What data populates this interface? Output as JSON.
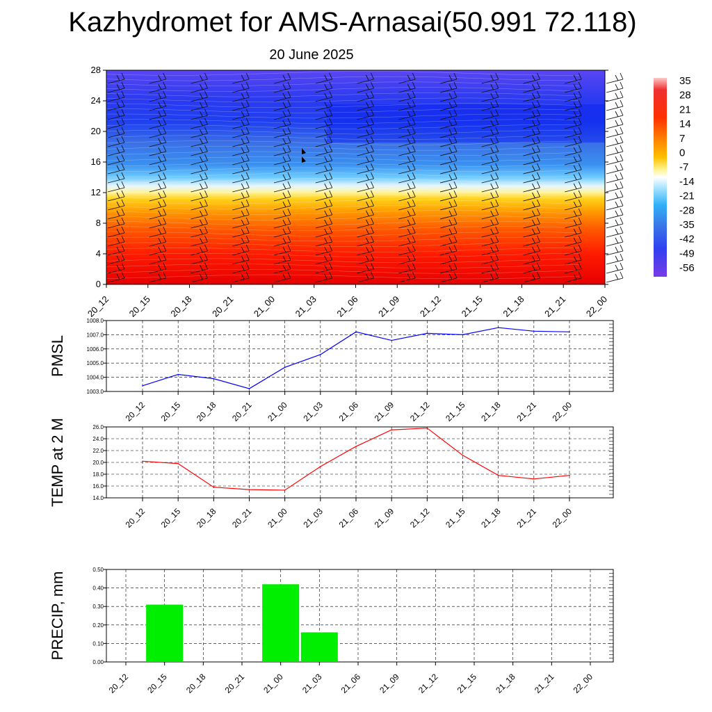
{
  "header": {
    "title": "Kazhydromet for AMS-Arnasai(50.991 72.118)",
    "subtitle": "20 June 2025"
  },
  "time_labels": [
    "20_12",
    "20_15",
    "20_18",
    "20_21",
    "21_00",
    "21_03",
    "21_06",
    "21_09",
    "21_12",
    "21_15",
    "21_18",
    "21_21",
    "22_00"
  ],
  "colors": {
    "pmsl_line": "#0000ff",
    "temp_line": "#ff0000",
    "precip_bar": "#00ee00",
    "grid": "#000000"
  },
  "chart_data": [
    {
      "type": "heatmap",
      "title": "Kazhydromet for AMS-Arnasai(50.991 72.118)",
      "subtitle": "20 June 2025",
      "x": [
        "20_12",
        "20_15",
        "20_18",
        "20_21",
        "21_00",
        "21_03",
        "21_06",
        "21_09",
        "21_12",
        "21_15",
        "21_18",
        "21_21",
        "22_00"
      ],
      "y_ticks": [
        0,
        4,
        8,
        12,
        16,
        20,
        24,
        28
      ],
      "ylim": [
        0,
        28
      ],
      "colorbar_ticks": [
        35,
        28,
        21,
        14,
        7,
        0,
        -7,
        -14,
        -21,
        -28,
        -35,
        -42,
        -49,
        -56
      ],
      "wind_barbs": true
    },
    {
      "type": "line",
      "ylabel": "PMSL",
      "x": [
        "20_12",
        "20_15",
        "20_18",
        "20_21",
        "21_00",
        "21_03",
        "21_06",
        "21_09",
        "21_12",
        "21_15",
        "21_18",
        "21_21",
        "22_00"
      ],
      "values": [
        1003.4,
        1004.2,
        1003.9,
        1003.2,
        1004.7,
        1005.6,
        1007.2,
        1006.6,
        1007.1,
        1007.0,
        1007.5,
        1007.25,
        1007.2
      ],
      "ylim": [
        1003.0,
        1008.0
      ],
      "y_ticks": [
        "1003.0",
        "1004.0",
        "1005.0",
        "1006.0",
        "1007.0",
        "1008.0"
      ],
      "grid": true
    },
    {
      "type": "line",
      "ylabel": "TEMP at 2 M",
      "x": [
        "20_12",
        "20_15",
        "20_18",
        "20_21",
        "21_00",
        "21_03",
        "21_06",
        "21_09",
        "21_12",
        "21_15",
        "21_18",
        "21_21",
        "22_00"
      ],
      "values": [
        20.2,
        19.8,
        15.8,
        15.4,
        15.3,
        19.3,
        22.7,
        25.5,
        25.8,
        21.2,
        17.8,
        17.2,
        17.8
      ],
      "ylim": [
        14.0,
        26.0
      ],
      "y_ticks": [
        "14.0",
        "16.0",
        "18.0",
        "20.0",
        "22.0",
        "24.0",
        "26.0"
      ],
      "grid": true
    },
    {
      "type": "bar",
      "ylabel": "PRECIP, mm",
      "categories": [
        "20_12",
        "20_15",
        "20_18",
        "20_21",
        "21_00",
        "21_03",
        "21_06",
        "21_09",
        "21_12",
        "21_15",
        "21_18",
        "21_21",
        "22_00"
      ],
      "values": [
        0,
        0.31,
        0,
        0,
        0.42,
        0.16,
        0,
        0,
        0,
        0,
        0,
        0,
        0
      ],
      "ylim": [
        0.0,
        0.5
      ],
      "y_ticks": [
        "0.00",
        "0.10",
        "0.20",
        "0.30",
        "0.40",
        "0.50"
      ],
      "grid": true
    }
  ]
}
